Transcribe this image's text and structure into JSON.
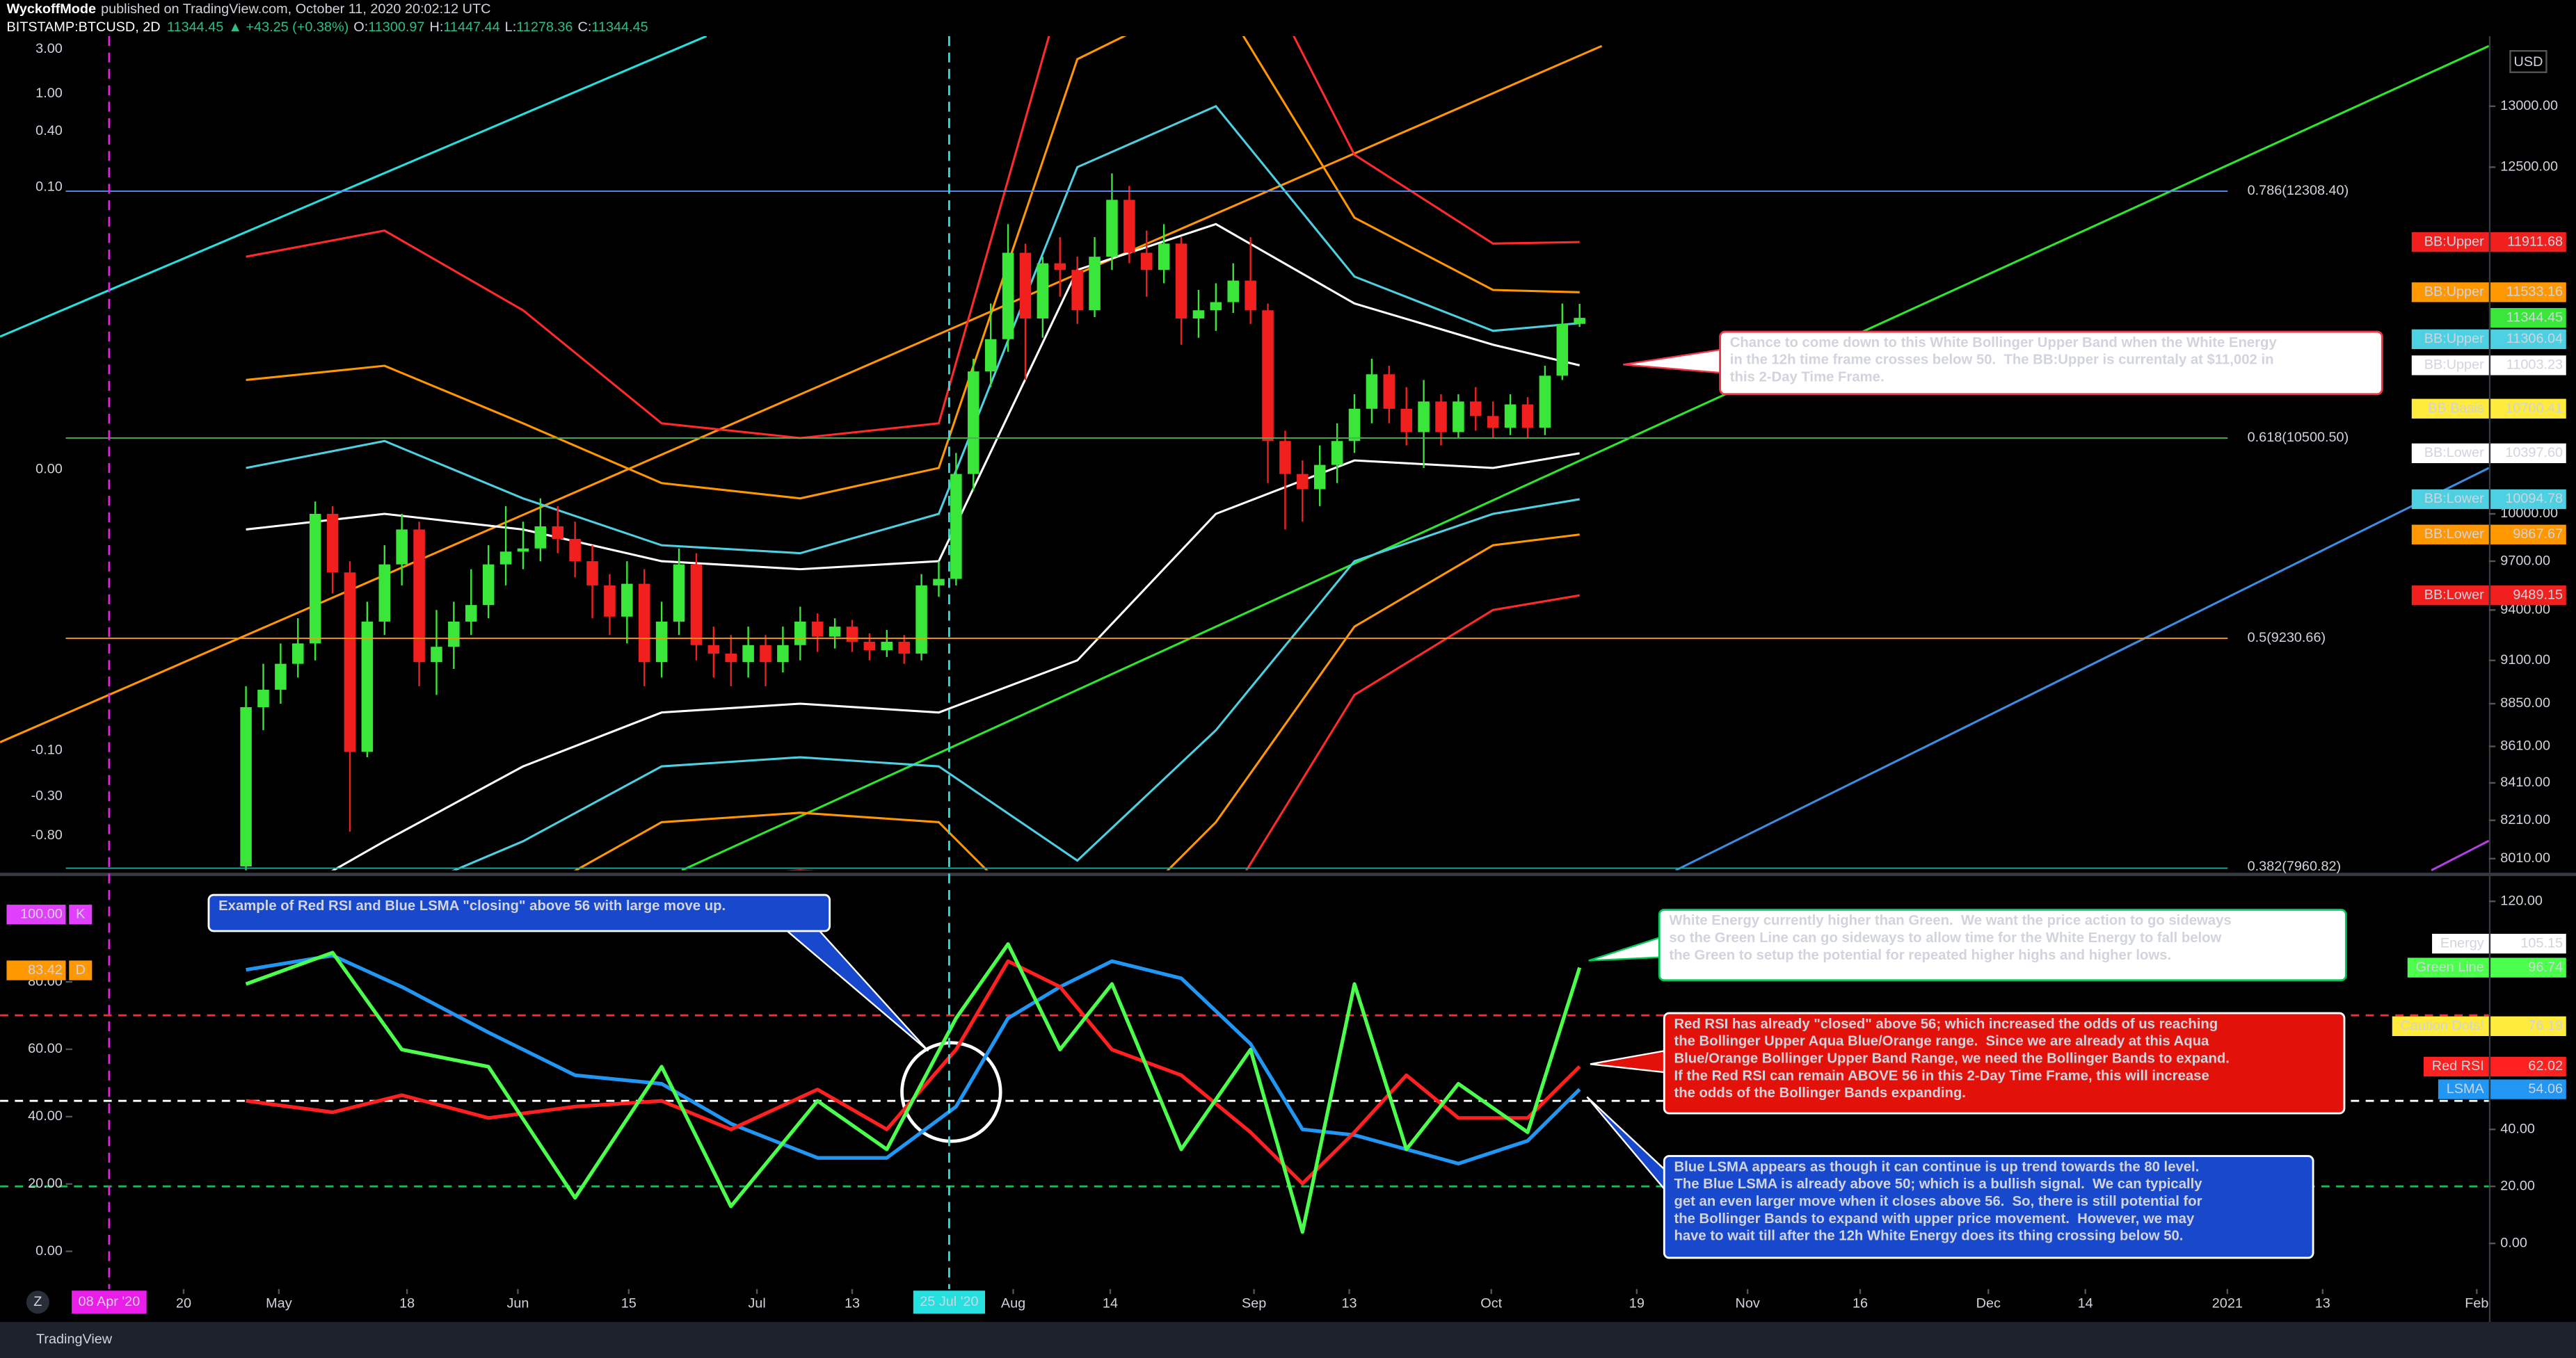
{
  "header": {
    "author": "WyckoffMode",
    "published": "published on TradingView.com, October 11, 2020 20:02:12 UTC",
    "symbol": "BITSTAMP:BTCUSD, 2D",
    "last": "11344.45",
    "change": "▲ +43.25 (+0.38%)",
    "ohlc": [
      [
        "O:",
        "11300.97"
      ],
      [
        "H:",
        "11447.44"
      ],
      [
        "L:",
        "11278.36"
      ],
      [
        "C:",
        "11344.45"
      ]
    ]
  },
  "currency": "USD",
  "left_scale_labels": [
    "3.00",
    "1.00",
    "0.40",
    "0.10",
    "0.00",
    "-0.10",
    "-0.30",
    "-0.80"
  ],
  "annotations": [
    {
      "lines": [
        "Chance to come down to this White Bollinger Upper Band when the White Energy",
        "in the 12h time frame crosses below 50.  The BB:Upper is currentaly at $11,002 in",
        "this 2-Day Time Frame."
      ]
    },
    {
      "lines": [
        "Example of Red RSI and Blue LSMA \"closing\" above 56 with large move up."
      ]
    },
    {
      "lines": [
        "White Energy currently higher than Green.  We want the price action to go sideways",
        "so the Green Line can go sideways to allow time for the White Energy to fall below",
        "the Green to setup the potential for repeated higher highs and higher lows."
      ]
    },
    {
      "lines": [
        "Red RSI has already \"closed\" above 56; which increased the odds of us reaching",
        "the Bollinger Upper Aqua Blue/Orange range.  Since we are already at this Aqua",
        "Blue/Orange Bollinger Upper Band Range, we need the Bollinger Bands to expand.",
        "If the Red RSI can remain ABOVE 56 in this 2-Day Time Frame, this will increase",
        "the odds of the Bollinger Bands expanding."
      ]
    },
    {
      "lines": [
        "Blue LSMA appears as though it can continue is up trend towards the 80 level.",
        "The Blue LSMA is already above 50; which is a bullish signal.  We can typically",
        "get an even larger move when it closes above 56.  So, there is still potential for",
        "the Bollinger Bands to expand with upper price movement.  However, we may",
        "have to wait till after the 12h White Energy does its thing crossing below 50."
      ]
    }
  ],
  "footer": {
    "brand": "TradingView",
    "button": "Z"
  },
  "chart_data": [
    {
      "type": "candlestick",
      "log": true,
      "xlim": [
        -14.2,
        129.5
      ],
      "ylim": [
        7950,
        13600
      ],
      "up_color": "#39e639",
      "down_color": "#f21f1f",
      "open": [
        7970,
        8830,
        8930,
        9080,
        9200,
        10000,
        9630,
        8580,
        9330,
        9680,
        9900,
        9090,
        9180,
        9330,
        9430,
        9680,
        9760,
        9780,
        9920,
        9840,
        9700,
        9550,
        9360,
        9560,
        9090,
        9330,
        9680,
        9190,
        9140,
        9090,
        9190,
        9090,
        9190,
        9330,
        9240,
        9300,
        9210,
        9160,
        9210,
        9140,
        9550,
        9590,
        10260,
        10960,
        11190,
        11830,
        11340,
        11750,
        11700,
        11400,
        11800,
        12240,
        11830,
        11700,
        11900,
        11340,
        11400,
        11460,
        11620,
        11400,
        10480,
        10260,
        10160,
        10320,
        10480,
        10700,
        10940,
        10700,
        10540,
        10750,
        10540,
        10750,
        10650,
        10570,
        10730,
        10570,
        10930,
        11300.97
      ],
      "high": [
        8950,
        9080,
        9200,
        9350,
        10080,
        10050,
        9700,
        9450,
        9800,
        10000,
        9950,
        9400,
        9450,
        9650,
        9800,
        10050,
        9950,
        10100,
        10050,
        9950,
        9800,
        9620,
        9700,
        9650,
        9450,
        9780,
        9750,
        9300,
        9250,
        9300,
        9250,
        9300,
        9420,
        9380,
        9350,
        9340,
        9260,
        9280,
        9250,
        9620,
        9700,
        10400,
        11050,
        11450,
        12050,
        11900,
        11800,
        11950,
        11800,
        11950,
        12450,
        12350,
        12000,
        12050,
        11950,
        11550,
        11600,
        11750,
        11950,
        11450,
        10550,
        10350,
        10450,
        10600,
        10800,
        11050,
        11000,
        10850,
        10900,
        10800,
        10800,
        10850,
        10750,
        10800,
        10780,
        11000,
        11450,
        11447.44
      ],
      "low": [
        7900,
        8700,
        8850,
        9000,
        9100,
        9500,
        8150,
        8550,
        9250,
        9550,
        8950,
        8900,
        9050,
        9250,
        9350,
        9550,
        9650,
        9700,
        9750,
        9600,
        9350,
        9250,
        9200,
        8950,
        9000,
        9250,
        9100,
        9000,
        8950,
        9000,
        8950,
        9030,
        9100,
        9150,
        9170,
        9150,
        9100,
        9120,
        9080,
        9100,
        9480,
        9550,
        10150,
        10850,
        11100,
        10900,
        11200,
        11500,
        11300,
        11350,
        11700,
        11750,
        11500,
        11600,
        11150,
        11200,
        11250,
        11380,
        11300,
        10200,
        9900,
        9950,
        10050,
        10200,
        10400,
        10600,
        10600,
        10450,
        10300,
        10450,
        10500,
        10550,
        10500,
        10520,
        10500,
        10520,
        10900,
        11278.36
      ],
      "close": [
        8830,
        8930,
        9080,
        9200,
        10000,
        9630,
        8580,
        9330,
        9680,
        9900,
        9090,
        9180,
        9330,
        9430,
        9680,
        9760,
        9780,
        9920,
        9840,
        9700,
        9550,
        9360,
        9560,
        9090,
        9330,
        9680,
        9190,
        9140,
        9090,
        9190,
        9090,
        9190,
        9330,
        9240,
        9300,
        9210,
        9160,
        9210,
        9140,
        9550,
        9590,
        10260,
        10960,
        11190,
        11830,
        11340,
        11750,
        11700,
        11400,
        11800,
        12240,
        11830,
        11700,
        11900,
        11340,
        11400,
        11460,
        11620,
        11400,
        10480,
        10260,
        10160,
        10320,
        10480,
        10700,
        10940,
        10700,
        10540,
        10750,
        10540,
        10750,
        10650,
        10570,
        10730,
        10570,
        10930,
        11300.97,
        11344.45
      ],
      "bands": [
        {
          "color": "#ff2a2a",
          "x": [
            0,
            8,
            16,
            24,
            32,
            40,
            48,
            56,
            64,
            72,
            77
          ],
          "values": [
            11800,
            12000,
            11400,
            10600,
            10500,
            10600,
            14500,
            15000,
            12600,
            11900,
            11911.68
          ]
        },
        {
          "color": "#ff9800",
          "x": [
            0,
            8,
            16,
            24,
            32,
            40,
            48,
            56,
            64,
            72,
            77
          ],
          "values": [
            10900,
            11000,
            10600,
            10200,
            10100,
            10300,
            13400,
            14000,
            12100,
            11550,
            11533.16
          ]
        },
        {
          "color": "#4dd0e1",
          "x": [
            0,
            8,
            16,
            24,
            32,
            40,
            48,
            56,
            64,
            72,
            77
          ],
          "values": [
            10300,
            10480,
            10100,
            9800,
            9750,
            10000,
            12500,
            13000,
            11650,
            11250,
            11306.04
          ]
        },
        {
          "color": "#ffffff",
          "x": [
            0,
            8,
            16,
            24,
            32,
            40,
            48,
            56,
            64,
            72,
            77
          ],
          "values": [
            9900,
            10000,
            9900,
            9700,
            9650,
            9700,
            11700,
            12050,
            11450,
            11150,
            11003.23
          ]
        },
        {
          "color": "#ffffff",
          "x": [
            0,
            8,
            16,
            24,
            32,
            40,
            48,
            56,
            64,
            72,
            77
          ],
          "values": [
            7700,
            8100,
            8500,
            8800,
            8850,
            8800,
            9100,
            10000,
            10350,
            10300,
            10397.6
          ]
        },
        {
          "color": "#4dd0e1",
          "x": [
            0,
            8,
            16,
            24,
            32,
            40,
            48,
            56,
            64,
            72,
            77
          ],
          "values": [
            7500,
            7800,
            8100,
            8500,
            8550,
            8500,
            8000,
            8700,
            9700,
            10000,
            10094.78
          ]
        },
        {
          "color": "#ff9800",
          "x": [
            0,
            8,
            16,
            24,
            32,
            40,
            48,
            56,
            64,
            72,
            77
          ],
          "values": [
            7200,
            7500,
            7800,
            8200,
            8250,
            8200,
            7500,
            8200,
            9300,
            9800,
            9867.67
          ]
        },
        {
          "color": "#ff2a2a",
          "x": [
            0,
            8,
            16,
            24,
            32,
            40,
            48,
            56,
            64,
            72,
            77
          ],
          "values": [
            6800,
            7200,
            7400,
            7900,
            7950,
            7900,
            7000,
            7700,
            8900,
            9400,
            9489.15
          ]
        }
      ],
      "fib_levels": {
        "values": [
          12308.4,
          10500.5,
          9230.66,
          7960.82
        ],
        "labels": [
          "0.786(12308.40)",
          "0.618(10500.50)",
          "0.5(9230.66)",
          "0.382(7960.82)"
        ],
        "colors": [
          "#5b8def",
          "#4caf50",
          "#ff9800",
          "#26a69a"
        ]
      },
      "yticks": [
        {
          "value": 13000,
          "label": "13000.00"
        },
        {
          "value": 12500,
          "label": "12500.00"
        },
        {
          "value": 10000,
          "label": "10000.00"
        },
        {
          "value": 9700,
          "label": "9700.00"
        },
        {
          "value": 9400,
          "label": "9400.00"
        },
        {
          "value": 9100,
          "label": "9100.00"
        },
        {
          "value": 8850,
          "label": "8850.00"
        },
        {
          "value": 8610,
          "label": "8610.00"
        },
        {
          "value": 8410,
          "label": "8410.00"
        },
        {
          "value": 8210,
          "label": "8210.00"
        },
        {
          "value": 8010,
          "label": "8010.00"
        }
      ],
      "price_tags": {
        "labels": [
          "BB:Upper",
          "BB:Upper",
          null,
          "BB:Upper",
          "BB:Upper",
          "BB:Basis",
          "BB:Lower",
          "BB:Lower",
          "BB:Lower",
          "BB:Lower"
        ],
        "values": [
          11911.68,
          11533.16,
          11344.45,
          11306.04,
          11003.23,
          10700.41,
          10397.6,
          10094.78,
          9867.67,
          9489.15
        ],
        "value_labels": [
          "11911.68",
          "11533.16",
          "11344.45",
          "11306.04",
          "11003.23",
          "10700.41",
          "10397.60",
          "10094.78",
          "9867.67",
          "9489.15"
        ],
        "colors": [
          "#f21f1f",
          "#ff9800",
          "#39e639",
          "#4dd0e1",
          "#ffffff",
          "#ffeb3b",
          "#ffffff",
          "#4dd0e1",
          "#ff9800",
          "#f21f1f"
        ]
      }
    },
    {
      "type": "line",
      "xlim": [
        -14.2,
        129.5
      ],
      "ylim": [
        -16,
        128
      ],
      "x": [
        0,
        5,
        9,
        14,
        19,
        24,
        28,
        33,
        37,
        41,
        44,
        47,
        50,
        54,
        58,
        61,
        64,
        67,
        70,
        74,
        77
      ],
      "series": [
        {
          "color": "#2196f3",
          "values": [
            96,
            101,
            90,
            74,
            59,
            56,
            42,
            30,
            30,
            48,
            79,
            90,
            99,
            93,
            70,
            40,
            38,
            33,
            28,
            36,
            54.06
          ]
        },
        {
          "color": "#ff2020",
          "values": [
            50,
            46,
            52,
            44,
            48,
            50,
            40,
            54,
            40,
            68,
            99,
            90,
            68,
            59,
            39,
            21,
            39,
            59,
            44,
            44,
            62.02
          ]
        },
        {
          "color": "#4cff4c",
          "values": [
            91,
            102,
            68,
            62,
            16,
            62,
            13,
            50,
            33,
            79,
            105,
            68,
            91,
            33,
            68,
            4,
            91,
            33,
            56,
            39,
            96.74
          ]
        }
      ],
      "levels": {
        "values": [
          80,
          50,
          20
        ],
        "colors": [
          "#ff2b2b",
          "#ffffff",
          "#00c853"
        ]
      },
      "yticks": [
        {
          "value": 0,
          "label": "0.00"
        },
        {
          "value": 20,
          "label": "20.00"
        },
        {
          "value": 40,
          "label": "40.00"
        },
        {
          "value": 120,
          "label": "120.00"
        }
      ],
      "left_ylim": [
        -11.2,
        110.7
      ],
      "left_yticks": [
        {
          "value": 0,
          "label": "0.00"
        },
        {
          "value": 20,
          "label": "20.00"
        },
        {
          "value": 40,
          "label": "40.00"
        },
        {
          "value": 60,
          "label": "60.00"
        },
        {
          "value": 80,
          "label": "80.00"
        }
      ],
      "left_tags": {
        "values": [
          100,
          83.42
        ],
        "value_labels": [
          "100.00",
          "83.42"
        ],
        "letters": [
          "K",
          "D"
        ],
        "colors": [
          "#e040fb",
          "#ff9800"
        ]
      },
      "right_tags": {
        "labels": [
          "Energy",
          "Green Line",
          "Caution Dots!",
          "Red RSI",
          "LSMA"
        ],
        "values": [
          105.15,
          96.74,
          76.19,
          62.02,
          54.06
        ],
        "colors": [
          "#ffffff",
          "#4cff4c",
          "#ffeb3b",
          "#ff2020",
          "#2196f3"
        ]
      },
      "xticks": [
        {
          "value": -3.6,
          "label": "20"
        },
        {
          "value": 1.9,
          "label": "May"
        },
        {
          "value": 9.3,
          "label": "18"
        },
        {
          "value": 15.7,
          "label": "Jun"
        },
        {
          "value": 22.1,
          "label": "15"
        },
        {
          "value": 29.5,
          "label": "Jul"
        },
        {
          "value": 35,
          "label": "13"
        },
        {
          "value": 44.3,
          "label": "Aug"
        },
        {
          "value": 49.9,
          "label": "14"
        },
        {
          "value": 58.2,
          "label": "Sep"
        },
        {
          "value": 63.7,
          "label": "13"
        },
        {
          "value": 71.9,
          "label": "Oct"
        },
        {
          "value": 80.3,
          "label": "19"
        },
        {
          "value": 86.7,
          "label": "Nov"
        },
        {
          "value": 93.2,
          "label": "16"
        },
        {
          "value": 100.6,
          "label": "Dec"
        },
        {
          "value": 106.2,
          "label": "14"
        },
        {
          "value": 114.4,
          "label": "2021"
        },
        {
          "value": 119.9,
          "label": "13"
        },
        {
          "value": 128.8,
          "label": "Feb"
        }
      ],
      "x_markers": {
        "values": [
          -7.9,
          40.6
        ],
        "labels": [
          "08 Apr '20",
          "25 Jul '20"
        ],
        "colors": [
          "#e91ee9",
          "#26e0e0"
        ]
      }
    }
  ]
}
